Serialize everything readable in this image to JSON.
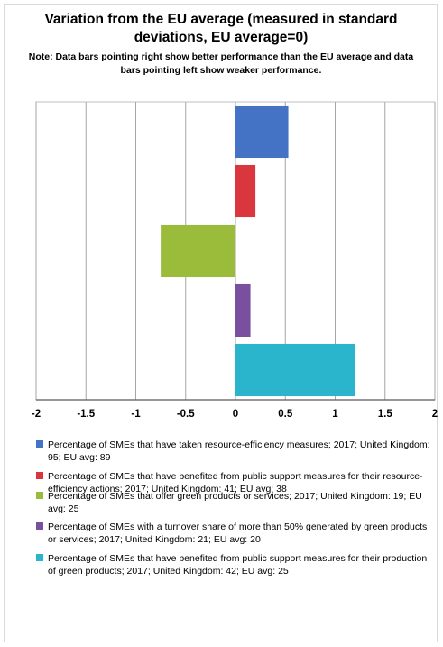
{
  "chart_data": {
    "type": "bar",
    "orientation": "horizontal",
    "title": "Variation from the EU average (measured in standard deviations, EU average=0)",
    "note": "Note: Data bars pointing right show better performance than the EU average and data bars pointing left show weaker performance.",
    "xlim": [
      -2,
      2
    ],
    "xticks": [
      "-2",
      "-1.5",
      "-1",
      "-0.5",
      "0",
      "0.5",
      "1",
      "1.5",
      "2"
    ],
    "grid": true,
    "legend_position": "bottom",
    "series": [
      {
        "name": "Percentage of SMEs that have taken resource-efficiency measures; 2017; United Kingdom: 95; EU avg: 89",
        "value": 0.53,
        "color": "#4472c4"
      },
      {
        "name": "Percentage of SMEs that have benefited from public support measures for their resource-efficiency actions; 2017; United Kingdom: 41; EU avg: 38",
        "value": 0.2,
        "color": "#d9363e"
      },
      {
        "name": "Percentage of SMEs that offer green products or services; 2017; United Kingdom: 19; EU avg: 25",
        "value": -0.75,
        "color": "#9bbb3b"
      },
      {
        "name": "Percentage of SMEs with a turnover share of more than 50% generated by green products or services; 2017; United Kingdom: 21; EU avg: 20",
        "value": 0.15,
        "color": "#7a4fa0"
      },
      {
        "name": "Percentage of SMEs that have benefited from public support measures for their production of green products; 2017; United Kingdom: 42; EU avg: 25",
        "value": 1.2,
        "color": "#2bb5cc"
      }
    ]
  }
}
